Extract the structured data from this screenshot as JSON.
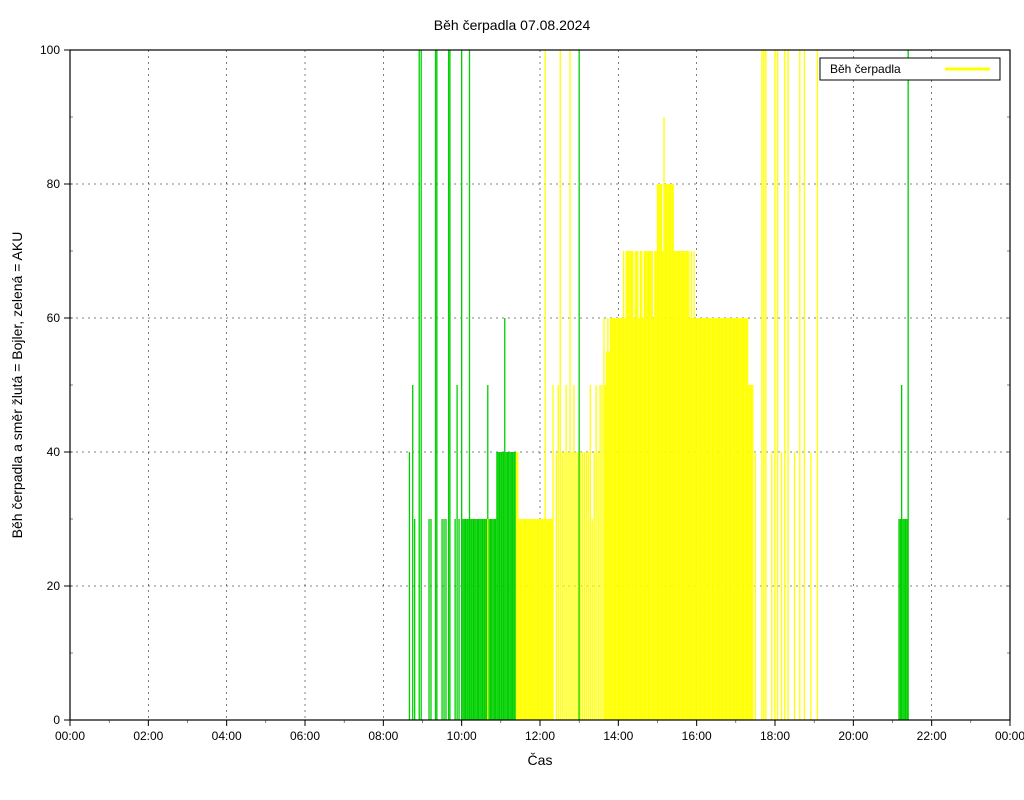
{
  "chart": {
    "type": "impulse",
    "title": "Běh čerpadla 07.08.2024",
    "title_fontsize": 14,
    "xlabel": "Čas",
    "ylabel": "Běh čerpadla a směr žlutá = Bojler, zelená = AKU",
    "label_fontsize": 14,
    "tick_fontsize": 12,
    "background_color": "#ffffff",
    "plot_border_color": "#000000",
    "grid_color": "#000000",
    "grid_dash": "2 4",
    "legend_label": "Běh čerpadla",
    "legend_sample_color": "#ffff00",
    "xaxis": {
      "min_min": 0,
      "max_min": 1440,
      "tick_step_min": 120,
      "tick_labels": [
        "00:00",
        "02:00",
        "04:00",
        "06:00",
        "08:00",
        "10:00",
        "12:00",
        "14:00",
        "16:00",
        "18:00",
        "20:00",
        "22:00",
        "00:00"
      ]
    },
    "yaxis": {
      "min": 0,
      "max": 100,
      "tick_step": 20,
      "tick_labels": [
        "0",
        "20",
        "40",
        "60",
        "80",
        "100"
      ]
    },
    "colors": {
      "green": "#00d000",
      "yellow": "#ffff00"
    },
    "line_width": 1,
    "series": {
      "green": [
        {
          "t": 520,
          "v": 40
        },
        {
          "t": 525,
          "v": 50
        },
        {
          "t": 528,
          "v": 30
        },
        {
          "t": 535,
          "v": 100
        },
        {
          "t": 538,
          "v": 100
        },
        {
          "t": 550,
          "v": 30
        },
        {
          "t": 553,
          "v": 30
        },
        {
          "t": 560,
          "v": 100
        },
        {
          "t": 562,
          "v": 100
        },
        {
          "t": 570,
          "v": 30
        },
        {
          "t": 573,
          "v": 30
        },
        {
          "t": 576,
          "v": 30
        },
        {
          "t": 580,
          "v": 100
        },
        {
          "t": 582,
          "v": 100
        },
        {
          "t": 590,
          "v": 30
        },
        {
          "t": 593,
          "v": 50
        },
        {
          "t": 596,
          "v": 30
        },
        {
          "t": 600,
          "v": 100
        },
        {
          "t": 602,
          "v": 30
        },
        {
          "t": 604,
          "v": 30
        },
        {
          "t": 606,
          "v": 30
        },
        {
          "t": 608,
          "v": 30
        },
        {
          "t": 610,
          "v": 30
        },
        {
          "t": 612,
          "v": 100
        },
        {
          "t": 614,
          "v": 30
        },
        {
          "t": 616,
          "v": 30
        },
        {
          "t": 618,
          "v": 30
        },
        {
          "t": 620,
          "v": 30
        },
        {
          "t": 622,
          "v": 30
        },
        {
          "t": 624,
          "v": 30
        },
        {
          "t": 626,
          "v": 30
        },
        {
          "t": 628,
          "v": 30
        },
        {
          "t": 630,
          "v": 30
        },
        {
          "t": 632,
          "v": 30
        },
        {
          "t": 634,
          "v": 30
        },
        {
          "t": 636,
          "v": 30
        },
        {
          "t": 638,
          "v": 30
        },
        {
          "t": 640,
          "v": 50
        },
        {
          "t": 642,
          "v": 30
        },
        {
          "t": 644,
          "v": 30
        },
        {
          "t": 646,
          "v": 30
        },
        {
          "t": 648,
          "v": 30
        },
        {
          "t": 650,
          "v": 30
        },
        {
          "t": 652,
          "v": 30
        },
        {
          "t": 654,
          "v": 40
        },
        {
          "t": 656,
          "v": 40
        },
        {
          "t": 658,
          "v": 40
        },
        {
          "t": 660,
          "v": 40
        },
        {
          "t": 662,
          "v": 40
        },
        {
          "t": 664,
          "v": 40
        },
        {
          "t": 666,
          "v": 60
        },
        {
          "t": 668,
          "v": 40
        },
        {
          "t": 670,
          "v": 40
        },
        {
          "t": 672,
          "v": 40
        },
        {
          "t": 674,
          "v": 40
        },
        {
          "t": 676,
          "v": 40
        },
        {
          "t": 678,
          "v": 40
        },
        {
          "t": 680,
          "v": 40
        },
        {
          "t": 682,
          "v": 40
        },
        {
          "t": 780,
          "v": 100
        },
        {
          "t": 1270,
          "v": 30
        },
        {
          "t": 1272,
          "v": 30
        },
        {
          "t": 1274,
          "v": 50
        },
        {
          "t": 1276,
          "v": 30
        },
        {
          "t": 1278,
          "v": 30
        },
        {
          "t": 1280,
          "v": 30
        },
        {
          "t": 1282,
          "v": 30
        },
        {
          "t": 1284,
          "v": 100
        }
      ],
      "yellow": [
        {
          "t": 640,
          "v": 30
        },
        {
          "t": 684,
          "v": 40
        },
        {
          "t": 686,
          "v": 40
        },
        {
          "t": 688,
          "v": 30
        },
        {
          "t": 690,
          "v": 30
        },
        {
          "t": 692,
          "v": 30
        },
        {
          "t": 694,
          "v": 30
        },
        {
          "t": 696,
          "v": 30
        },
        {
          "t": 698,
          "v": 30
        },
        {
          "t": 700,
          "v": 30
        },
        {
          "t": 702,
          "v": 30
        },
        {
          "t": 704,
          "v": 30
        },
        {
          "t": 706,
          "v": 30
        },
        {
          "t": 708,
          "v": 30
        },
        {
          "t": 710,
          "v": 30
        },
        {
          "t": 712,
          "v": 30
        },
        {
          "t": 714,
          "v": 30
        },
        {
          "t": 716,
          "v": 30
        },
        {
          "t": 718,
          "v": 30
        },
        {
          "t": 720,
          "v": 30
        },
        {
          "t": 722,
          "v": 30
        },
        {
          "t": 724,
          "v": 30
        },
        {
          "t": 726,
          "v": 30
        },
        {
          "t": 728,
          "v": 100
        },
        {
          "t": 730,
          "v": 30
        },
        {
          "t": 732,
          "v": 30
        },
        {
          "t": 734,
          "v": 30
        },
        {
          "t": 736,
          "v": 30
        },
        {
          "t": 738,
          "v": 30
        },
        {
          "t": 740,
          "v": 50
        },
        {
          "t": 745,
          "v": 40
        },
        {
          "t": 748,
          "v": 50
        },
        {
          "t": 751,
          "v": 100
        },
        {
          "t": 754,
          "v": 40
        },
        {
          "t": 757,
          "v": 40
        },
        {
          "t": 760,
          "v": 50
        },
        {
          "t": 763,
          "v": 40
        },
        {
          "t": 766,
          "v": 100
        },
        {
          "t": 769,
          "v": 40
        },
        {
          "t": 772,
          "v": 50
        },
        {
          "t": 775,
          "v": 40
        },
        {
          "t": 778,
          "v": 40
        },
        {
          "t": 782,
          "v": 40
        },
        {
          "t": 785,
          "v": 40
        },
        {
          "t": 788,
          "v": 40
        },
        {
          "t": 791,
          "v": 40
        },
        {
          "t": 794,
          "v": 40
        },
        {
          "t": 797,
          "v": 50
        },
        {
          "t": 800,
          "v": 30
        },
        {
          "t": 803,
          "v": 40
        },
        {
          "t": 806,
          "v": 50
        },
        {
          "t": 809,
          "v": 40
        },
        {
          "t": 812,
          "v": 50
        },
        {
          "t": 815,
          "v": 50
        },
        {
          "t": 818,
          "v": 60
        },
        {
          "t": 820,
          "v": 50
        },
        {
          "t": 822,
          "v": 55
        },
        {
          "t": 824,
          "v": 60
        },
        {
          "t": 826,
          "v": 55
        },
        {
          "t": 828,
          "v": 60
        },
        {
          "t": 830,
          "v": 60
        },
        {
          "t": 832,
          "v": 60
        },
        {
          "t": 834,
          "v": 60
        },
        {
          "t": 836,
          "v": 60
        },
        {
          "t": 838,
          "v": 60
        },
        {
          "t": 840,
          "v": 60
        },
        {
          "t": 842,
          "v": 60
        },
        {
          "t": 844,
          "v": 60
        },
        {
          "t": 846,
          "v": 60
        },
        {
          "t": 848,
          "v": 70
        },
        {
          "t": 850,
          "v": 60
        },
        {
          "t": 852,
          "v": 70
        },
        {
          "t": 854,
          "v": 70
        },
        {
          "t": 856,
          "v": 70
        },
        {
          "t": 858,
          "v": 70
        },
        {
          "t": 860,
          "v": 70
        },
        {
          "t": 862,
          "v": 70
        },
        {
          "t": 864,
          "v": 60
        },
        {
          "t": 866,
          "v": 70
        },
        {
          "t": 868,
          "v": 70
        },
        {
          "t": 870,
          "v": 70
        },
        {
          "t": 872,
          "v": 60
        },
        {
          "t": 874,
          "v": 70
        },
        {
          "t": 876,
          "v": 70
        },
        {
          "t": 878,
          "v": 60
        },
        {
          "t": 880,
          "v": 70
        },
        {
          "t": 882,
          "v": 70
        },
        {
          "t": 884,
          "v": 70
        },
        {
          "t": 886,
          "v": 70
        },
        {
          "t": 888,
          "v": 70
        },
        {
          "t": 890,
          "v": 70
        },
        {
          "t": 892,
          "v": 70
        },
        {
          "t": 894,
          "v": 60
        },
        {
          "t": 896,
          "v": 70
        },
        {
          "t": 898,
          "v": 70
        },
        {
          "t": 900,
          "v": 80
        },
        {
          "t": 902,
          "v": 80
        },
        {
          "t": 904,
          "v": 80
        },
        {
          "t": 906,
          "v": 80
        },
        {
          "t": 908,
          "v": 70
        },
        {
          "t": 910,
          "v": 90
        },
        {
          "t": 912,
          "v": 80
        },
        {
          "t": 914,
          "v": 80
        },
        {
          "t": 916,
          "v": 80
        },
        {
          "t": 918,
          "v": 80
        },
        {
          "t": 920,
          "v": 80
        },
        {
          "t": 922,
          "v": 80
        },
        {
          "t": 924,
          "v": 80
        },
        {
          "t": 926,
          "v": 70
        },
        {
          "t": 928,
          "v": 70
        },
        {
          "t": 930,
          "v": 70
        },
        {
          "t": 932,
          "v": 70
        },
        {
          "t": 934,
          "v": 70
        },
        {
          "t": 936,
          "v": 70
        },
        {
          "t": 938,
          "v": 70
        },
        {
          "t": 940,
          "v": 70
        },
        {
          "t": 942,
          "v": 70
        },
        {
          "t": 944,
          "v": 70
        },
        {
          "t": 946,
          "v": 70
        },
        {
          "t": 948,
          "v": 70
        },
        {
          "t": 950,
          "v": 60
        },
        {
          "t": 952,
          "v": 70
        },
        {
          "t": 954,
          "v": 60
        },
        {
          "t": 956,
          "v": 70
        },
        {
          "t": 958,
          "v": 60
        },
        {
          "t": 960,
          "v": 60
        },
        {
          "t": 962,
          "v": 60
        },
        {
          "t": 964,
          "v": 60
        },
        {
          "t": 966,
          "v": 60
        },
        {
          "t": 968,
          "v": 60
        },
        {
          "t": 970,
          "v": 60
        },
        {
          "t": 972,
          "v": 60
        },
        {
          "t": 974,
          "v": 60
        },
        {
          "t": 976,
          "v": 60
        },
        {
          "t": 978,
          "v": 60
        },
        {
          "t": 980,
          "v": 60
        },
        {
          "t": 982,
          "v": 60
        },
        {
          "t": 984,
          "v": 60
        },
        {
          "t": 986,
          "v": 60
        },
        {
          "t": 988,
          "v": 60
        },
        {
          "t": 990,
          "v": 60
        },
        {
          "t": 992,
          "v": 60
        },
        {
          "t": 994,
          "v": 60
        },
        {
          "t": 996,
          "v": 60
        },
        {
          "t": 998,
          "v": 60
        },
        {
          "t": 1000,
          "v": 60
        },
        {
          "t": 1002,
          "v": 60
        },
        {
          "t": 1004,
          "v": 60
        },
        {
          "t": 1006,
          "v": 60
        },
        {
          "t": 1008,
          "v": 60
        },
        {
          "t": 1010,
          "v": 60
        },
        {
          "t": 1012,
          "v": 60
        },
        {
          "t": 1014,
          "v": 60
        },
        {
          "t": 1016,
          "v": 60
        },
        {
          "t": 1018,
          "v": 60
        },
        {
          "t": 1020,
          "v": 60
        },
        {
          "t": 1022,
          "v": 60
        },
        {
          "t": 1024,
          "v": 60
        },
        {
          "t": 1026,
          "v": 60
        },
        {
          "t": 1028,
          "v": 60
        },
        {
          "t": 1030,
          "v": 60
        },
        {
          "t": 1032,
          "v": 60
        },
        {
          "t": 1034,
          "v": 60
        },
        {
          "t": 1036,
          "v": 60
        },
        {
          "t": 1038,
          "v": 60
        },
        {
          "t": 1040,
          "v": 50
        },
        {
          "t": 1042,
          "v": 50
        },
        {
          "t": 1044,
          "v": 50
        },
        {
          "t": 1046,
          "v": 50
        },
        {
          "t": 1050,
          "v": 40
        },
        {
          "t": 1060,
          "v": 100
        },
        {
          "t": 1063,
          "v": 100
        },
        {
          "t": 1066,
          "v": 100
        },
        {
          "t": 1075,
          "v": 40
        },
        {
          "t": 1080,
          "v": 100
        },
        {
          "t": 1084,
          "v": 100
        },
        {
          "t": 1090,
          "v": 40
        },
        {
          "t": 1095,
          "v": 100
        },
        {
          "t": 1100,
          "v": 100
        },
        {
          "t": 1110,
          "v": 40
        },
        {
          "t": 1118,
          "v": 100
        },
        {
          "t": 1125,
          "v": 100
        },
        {
          "t": 1135,
          "v": 40
        },
        {
          "t": 1145,
          "v": 100
        }
      ]
    }
  }
}
